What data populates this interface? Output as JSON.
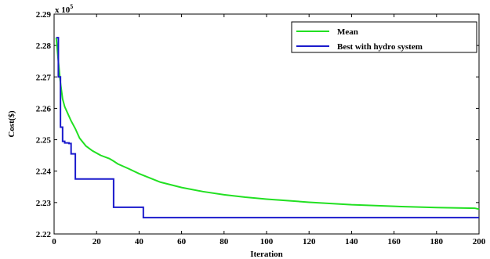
{
  "chart_data": {
    "type": "line",
    "xlabel": "Iteration",
    "ylabel": "Cost($)",
    "y_multiplier_base": "x 10",
    "y_multiplier_exp": "5",
    "xlim": [
      0,
      200
    ],
    "ylim": [
      2.22,
      2.29
    ],
    "x_ticks": [
      0,
      20,
      40,
      60,
      80,
      100,
      120,
      140,
      160,
      180,
      200
    ],
    "y_ticks": [
      2.22,
      2.23,
      2.24,
      2.25,
      2.26,
      2.27,
      2.28,
      2.29
    ],
    "x_tick_labels": [
      "0",
      "20",
      "40",
      "60",
      "80",
      "100",
      "120",
      "140",
      "160",
      "180",
      "200"
    ],
    "y_tick_labels": [
      "2.22",
      "2.23",
      "2.24",
      "2.25",
      "2.26",
      "2.27",
      "2.28",
      "2.29"
    ],
    "grid": false,
    "legend_position": "top-right",
    "series": [
      {
        "name": "Mean",
        "color": "#22e022",
        "step": false,
        "x": [
          1,
          2,
          3,
          4,
          5,
          6,
          8,
          10,
          12,
          15,
          18,
          22,
          26,
          28,
          30,
          35,
          40,
          50,
          60,
          70,
          80,
          90,
          100,
          120,
          140,
          160,
          180,
          198,
          200
        ],
        "y": [
          2.2825,
          2.275,
          2.268,
          2.263,
          2.2605,
          2.259,
          2.256,
          2.2535,
          2.2505,
          2.248,
          2.2465,
          2.245,
          2.244,
          2.2432,
          2.2423,
          2.2408,
          2.2392,
          2.2365,
          2.2348,
          2.2335,
          2.2325,
          2.2317,
          2.2311,
          2.2301,
          2.2293,
          2.2288,
          2.2284,
          2.2282,
          2.2279
        ]
      },
      {
        "name": "Best with hydro system",
        "color": "#1a1acc",
        "step": true,
        "x": [
          1,
          2,
          3,
          4,
          5,
          6,
          7,
          8,
          10,
          27,
          28,
          41,
          42,
          200
        ],
        "y": [
          2.2825,
          2.27,
          2.254,
          2.2495,
          2.249,
          2.249,
          2.2488,
          2.2455,
          2.2375,
          2.2375,
          2.2285,
          2.2285,
          2.2252,
          2.2252
        ]
      }
    ]
  }
}
